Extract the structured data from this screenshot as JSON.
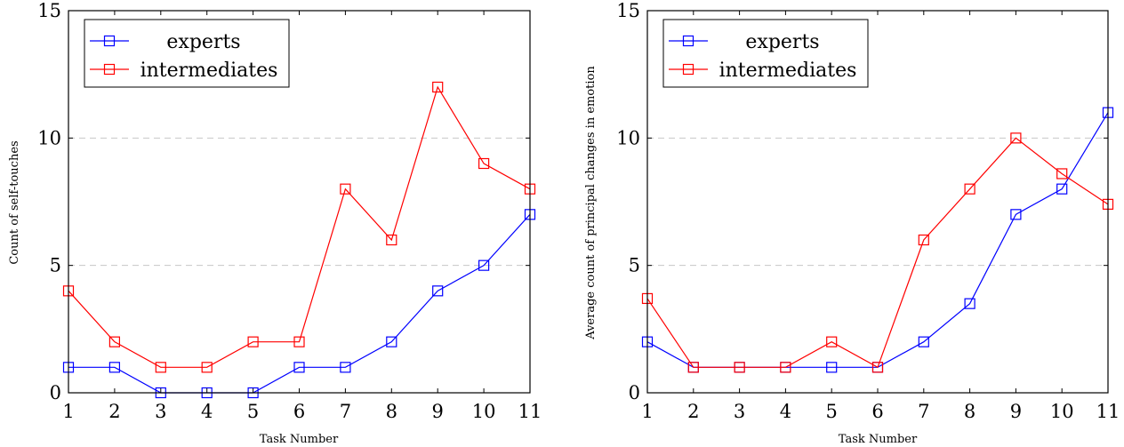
{
  "chart_data": [
    {
      "type": "line",
      "xlabel": "Task Number",
      "ylabel": "Count of self-touches",
      "x": [
        1,
        2,
        3,
        4,
        5,
        6,
        7,
        8,
        9,
        10,
        11
      ],
      "xlim": [
        1,
        11
      ],
      "ylim": [
        0,
        15
      ],
      "yticks": [
        0,
        5,
        10,
        15
      ],
      "grid": "horizontal dashed at 5 and 10",
      "legend_position": "top-left",
      "series": [
        {
          "name": "experts",
          "color": "#0000ff",
          "marker": "square",
          "values": [
            1,
            1,
            0,
            0,
            0,
            1,
            1,
            2,
            4,
            5,
            7
          ]
        },
        {
          "name": "intermediates",
          "color": "#ff0000",
          "marker": "square",
          "values": [
            4,
            2,
            1,
            1,
            2,
            2,
            8,
            6,
            12,
            9,
            8
          ]
        }
      ]
    },
    {
      "type": "line",
      "xlabel": "Task Number",
      "ylabel": "Average count of principal changes in emotion",
      "x": [
        1,
        2,
        3,
        4,
        5,
        6,
        7,
        8,
        9,
        10,
        11
      ],
      "xlim": [
        1,
        11
      ],
      "ylim": [
        0,
        15
      ],
      "yticks": [
        0,
        5,
        10,
        15
      ],
      "grid": "horizontal dashed at 5 and 10",
      "legend_position": "top-left",
      "series": [
        {
          "name": "experts",
          "color": "#0000ff",
          "marker": "square",
          "values": [
            2,
            1,
            1,
            1,
            1,
            1,
            2,
            3.5,
            7,
            8,
            11
          ]
        },
        {
          "name": "intermediates",
          "color": "#ff0000",
          "marker": "square",
          "values": [
            3.7,
            1,
            1,
            1,
            2,
            1,
            6,
            8,
            10,
            8.6,
            7.4
          ]
        }
      ]
    }
  ]
}
